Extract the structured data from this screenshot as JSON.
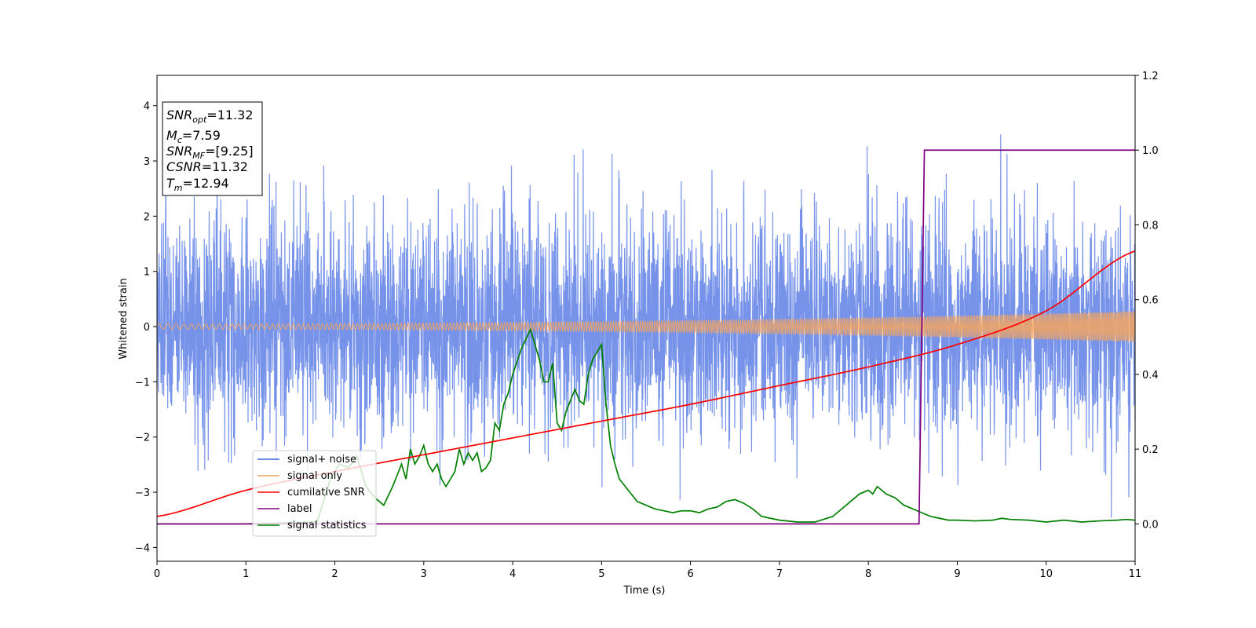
{
  "chart_data": {
    "type": "line",
    "xlabel": "Time (s)",
    "ylabel": "Whitened strain",
    "xlim": [
      0,
      11
    ],
    "ylim_left": [
      -4.25,
      4.55
    ],
    "ylim_right": [
      -0.1,
      1.2
    ],
    "x_ticks": [
      0,
      1,
      2,
      3,
      4,
      5,
      6,
      7,
      8,
      9,
      10,
      11
    ],
    "y_ticks_left": [
      -4,
      -3,
      -2,
      -1,
      0,
      1,
      2,
      3,
      4
    ],
    "y_ticks_right": [
      0.0,
      0.2,
      0.4,
      0.6,
      0.8,
      1.0,
      1.2
    ],
    "x_tick_labels": [
      "0",
      "1",
      "2",
      "3",
      "4",
      "5",
      "6",
      "7",
      "8",
      "9",
      "10",
      "11"
    ],
    "y_tick_labels_left": [
      "−4",
      "−3",
      "−2",
      "−1",
      "0",
      "1",
      "2",
      "3",
      "4"
    ],
    "y_tick_labels_right": [
      "0.0",
      "0.2",
      "0.4",
      "0.6",
      "0.8",
      "1.0",
      "1.2"
    ],
    "grid": false,
    "legend_position": "lower-left",
    "info_box": {
      "snr_opt": {
        "base": "SNR",
        "sub": "opt",
        "value": "=11.32"
      },
      "mc": {
        "base": "M",
        "sub": "c",
        "value": "=7.59"
      },
      "snr_mf": {
        "base": "SNR",
        "sub": "MF",
        "value": "=[9.25]"
      },
      "csnr": {
        "base": "CSNR",
        "value": "=11.32"
      },
      "tm": {
        "base": "T",
        "sub": "m",
        "value": "=12.94"
      }
    },
    "series": [
      {
        "name": "signal+ noise",
        "axis": "left",
        "color": "#4169e1",
        "noise_sigma": 1.0,
        "typical_range": [
          -3.7,
          4.2
        ]
      },
      {
        "name": "signal only",
        "axis": "left",
        "color": "#f4a460",
        "amplitude_start": 0.05,
        "amplitude_end": 0.28
      },
      {
        "name": "cumilative SNR",
        "axis": "right",
        "color": "#ff0000",
        "x": [
          0,
          1,
          2,
          3,
          4,
          5,
          6,
          7,
          8,
          9,
          10,
          11
        ],
        "values": [
          0.02,
          0.09,
          0.14,
          0.185,
          0.23,
          0.275,
          0.32,
          0.37,
          0.42,
          0.48,
          0.57,
          0.73
        ]
      },
      {
        "name": "label",
        "axis": "right",
        "color": "#800080",
        "x": [
          0,
          8.57,
          8.63,
          11
        ],
        "values": [
          0.0,
          0.0,
          1.0,
          1.0
        ]
      },
      {
        "name": "signal statistics",
        "axis": "right",
        "color": "#008000",
        "x": [
          0,
          1.0,
          1.8,
          1.95,
          2.05,
          2.15,
          2.25,
          2.35,
          2.45,
          2.55,
          2.65,
          2.75,
          2.8,
          2.85,
          2.9,
          2.95,
          3.0,
          3.05,
          3.1,
          3.15,
          3.2,
          3.25,
          3.3,
          3.35,
          3.4,
          3.45,
          3.5,
          3.55,
          3.6,
          3.65,
          3.7,
          3.75,
          3.8,
          3.85,
          3.9,
          3.95,
          4.0,
          4.1,
          4.2,
          4.3,
          4.35,
          4.4,
          4.45,
          4.5,
          4.55,
          4.6,
          4.65,
          4.7,
          4.75,
          4.8,
          4.85,
          4.9,
          5.0,
          5.05,
          5.1,
          5.15,
          5.2,
          5.3,
          5.4,
          5.5,
          5.6,
          5.7,
          5.8,
          5.9,
          6.0,
          6.1,
          6.2,
          6.3,
          6.4,
          6.5,
          6.6,
          6.7,
          6.8,
          6.9,
          7.0,
          7.2,
          7.4,
          7.6,
          7.7,
          7.8,
          7.9,
          8.0,
          8.05,
          8.1,
          8.15,
          8.2,
          8.3,
          8.4,
          8.5,
          8.6,
          8.7,
          8.8,
          8.9,
          9.0,
          9.2,
          9.4,
          9.5,
          9.6,
          9.8,
          10.0,
          10.2,
          10.4,
          10.6,
          10.8,
          10.9,
          11
        ],
        "values": [
          0.0,
          0.0,
          0.005,
          0.12,
          0.16,
          0.15,
          0.18,
          0.1,
          0.07,
          0.05,
          0.1,
          0.16,
          0.12,
          0.2,
          0.16,
          0.18,
          0.21,
          0.16,
          0.14,
          0.16,
          0.12,
          0.1,
          0.12,
          0.14,
          0.2,
          0.16,
          0.19,
          0.17,
          0.19,
          0.14,
          0.15,
          0.17,
          0.27,
          0.25,
          0.32,
          0.35,
          0.4,
          0.47,
          0.52,
          0.44,
          0.38,
          0.38,
          0.43,
          0.27,
          0.25,
          0.3,
          0.33,
          0.36,
          0.33,
          0.32,
          0.4,
          0.44,
          0.48,
          0.32,
          0.21,
          0.16,
          0.12,
          0.09,
          0.06,
          0.05,
          0.04,
          0.035,
          0.03,
          0.035,
          0.035,
          0.03,
          0.04,
          0.045,
          0.06,
          0.065,
          0.055,
          0.04,
          0.02,
          0.015,
          0.01,
          0.005,
          0.005,
          0.02,
          0.04,
          0.06,
          0.08,
          0.09,
          0.08,
          0.1,
          0.09,
          0.08,
          0.07,
          0.05,
          0.04,
          0.03,
          0.02,
          0.015,
          0.01,
          0.01,
          0.008,
          0.01,
          0.015,
          0.012,
          0.01,
          0.005,
          0.01,
          0.005,
          0.008,
          0.01,
          0.012,
          0.01
        ]
      }
    ]
  }
}
